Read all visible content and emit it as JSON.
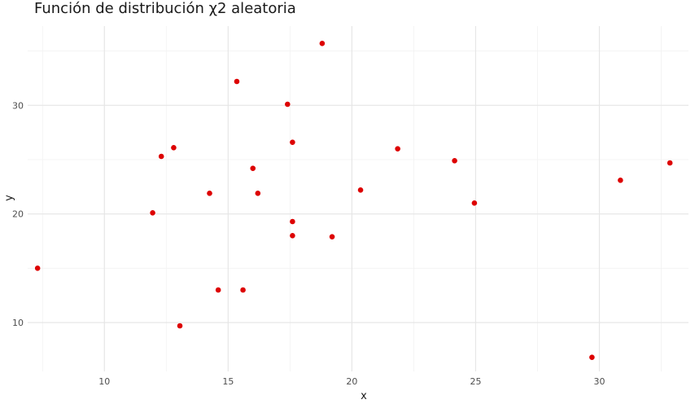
{
  "chart_data": {
    "type": "scatter",
    "title": "Función de distribución χ2 aleatoria",
    "xlabel": "x",
    "ylabel": "y",
    "xlim": [
      6.9,
      33.6
    ],
    "ylim": [
      5.5,
      37.3
    ],
    "x_ticks": [
      10,
      15,
      20,
      25,
      30
    ],
    "y_ticks": [
      10,
      20,
      30
    ],
    "grid": true,
    "legend": "none",
    "point_color": "#dd0000",
    "grid_major_color": "#e6e6e6",
    "grid_minor_color": "#f2f2f2",
    "points": [
      {
        "x": 7.3,
        "y": 15.0
      },
      {
        "x": 11.95,
        "y": 20.1
      },
      {
        "x": 12.3,
        "y": 25.3
      },
      {
        "x": 12.8,
        "y": 26.1
      },
      {
        "x": 13.05,
        "y": 9.7
      },
      {
        "x": 14.25,
        "y": 21.9
      },
      {
        "x": 14.6,
        "y": 13.0
      },
      {
        "x": 15.35,
        "y": 32.2
      },
      {
        "x": 15.6,
        "y": 13.0
      },
      {
        "x": 16.0,
        "y": 24.2
      },
      {
        "x": 16.2,
        "y": 21.9
      },
      {
        "x": 17.4,
        "y": 30.1
      },
      {
        "x": 17.6,
        "y": 26.6
      },
      {
        "x": 17.6,
        "y": 19.3
      },
      {
        "x": 17.6,
        "y": 18.0
      },
      {
        "x": 18.8,
        "y": 35.7
      },
      {
        "x": 19.2,
        "y": 17.9
      },
      {
        "x": 20.35,
        "y": 22.2
      },
      {
        "x": 21.85,
        "y": 26.0
      },
      {
        "x": 24.15,
        "y": 24.9
      },
      {
        "x": 24.95,
        "y": 21.0
      },
      {
        "x": 29.7,
        "y": 6.8
      },
      {
        "x": 30.85,
        "y": 23.1
      },
      {
        "x": 32.85,
        "y": 24.7
      }
    ]
  }
}
